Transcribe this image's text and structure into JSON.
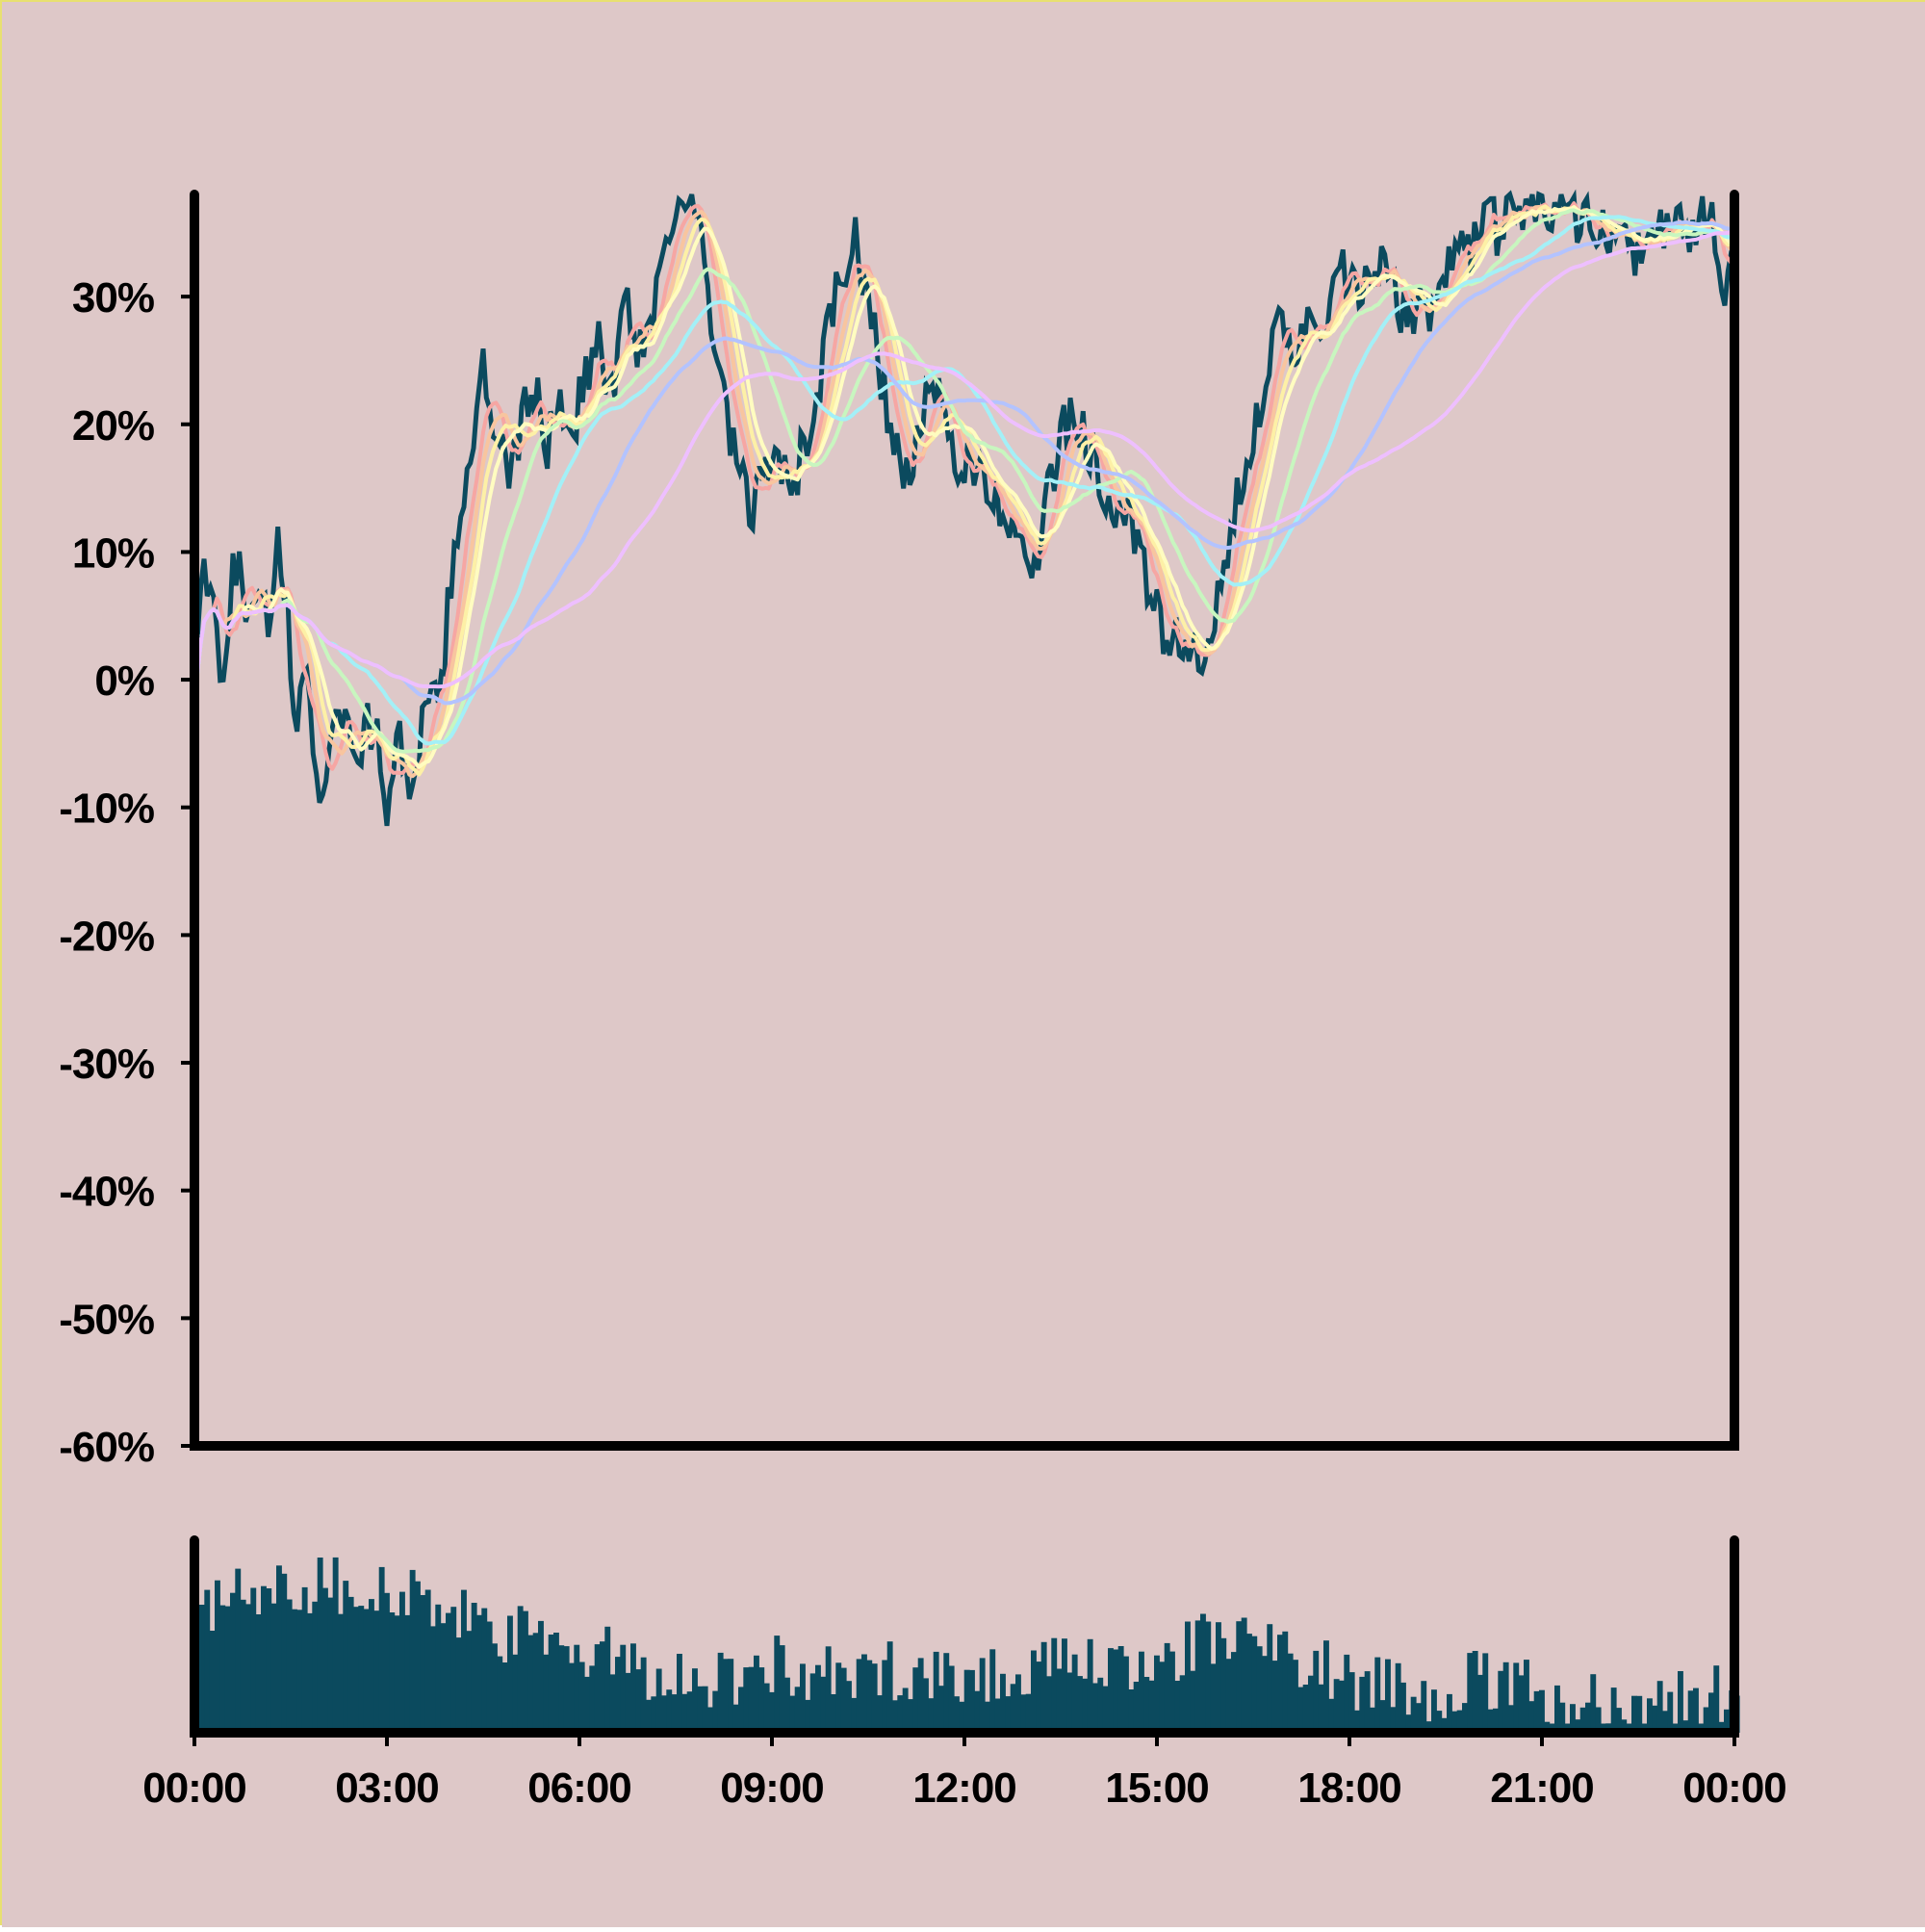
{
  "colors": {
    "background": "#dec8c8",
    "price": "#0b4a5e",
    "volume": "#0b4a5e",
    "axis": "#000000",
    "ma": [
      "#f6a6a3",
      "#f8c59f",
      "#fdf0a6",
      "#fffcc0",
      "#c8f6bf",
      "#a3f0f7",
      "#b3c3ff",
      "#eebfff"
    ]
  },
  "chart_data": [
    {
      "type": "line",
      "panel": "price",
      "ylim": [
        -0.6,
        0.38
      ],
      "y_ticks": [
        -0.6,
        -0.5,
        -0.4,
        -0.3,
        -0.2,
        -0.1,
        0,
        0.1,
        0.2,
        0.3
      ],
      "y_tick_labels": [
        "-60%",
        "-50%",
        "-40%",
        "-30%",
        "-20%",
        "-10%",
        "0%",
        "10%",
        "20%",
        "30%"
      ],
      "x_unit": "hours",
      "xlim": [
        0,
        24
      ],
      "price_series": [
        [
          0,
          0
        ],
        [
          0.15,
          0.08
        ],
        [
          0.3,
          0.05
        ],
        [
          0.45,
          0
        ],
        [
          0.6,
          0.1
        ],
        [
          0.8,
          0.06
        ],
        [
          1.0,
          0.08
        ],
        [
          1.2,
          0.04
        ],
        [
          1.3,
          0.1
        ],
        [
          1.45,
          0.05
        ],
        [
          1.6,
          -0.05
        ],
        [
          1.75,
          0.02
        ],
        [
          1.95,
          -0.1
        ],
        [
          2.1,
          -0.05
        ],
        [
          2.25,
          -0.02
        ],
        [
          2.4,
          -0.04
        ],
        [
          2.55,
          -0.06
        ],
        [
          2.7,
          -0.03
        ],
        [
          2.85,
          -0.05
        ],
        [
          3.0,
          -0.1
        ],
        [
          3.15,
          -0.04
        ],
        [
          3.3,
          -0.08
        ],
        [
          3.45,
          -0.06
        ],
        [
          3.6,
          -0.03
        ],
        [
          3.8,
          -0.02
        ],
        [
          3.95,
          0.05
        ],
        [
          4.1,
          0.12
        ],
        [
          4.3,
          0.18
        ],
        [
          4.5,
          0.24
        ],
        [
          4.7,
          0.18
        ],
        [
          4.9,
          0.16
        ],
        [
          5.1,
          0.2
        ],
        [
          5.3,
          0.23
        ],
        [
          5.5,
          0.18
        ],
        [
          5.7,
          0.22
        ],
        [
          5.9,
          0.2
        ],
        [
          6.1,
          0.24
        ],
        [
          6.3,
          0.26
        ],
        [
          6.5,
          0.22
        ],
        [
          6.7,
          0.3
        ],
        [
          6.9,
          0.26
        ],
        [
          7.1,
          0.28
        ],
        [
          7.3,
          0.33
        ],
        [
          7.5,
          0.38
        ],
        [
          7.7,
          0.38
        ],
        [
          7.9,
          0.34
        ],
        [
          8.1,
          0.26
        ],
        [
          8.3,
          0.2
        ],
        [
          8.5,
          0.16
        ],
        [
          8.7,
          0.12
        ],
        [
          8.9,
          0.18
        ],
        [
          9.1,
          0.16
        ],
        [
          9.3,
          0.15
        ],
        [
          9.5,
          0.18
        ],
        [
          9.7,
          0.22
        ],
        [
          9.9,
          0.28
        ],
        [
          10.1,
          0.32
        ],
        [
          10.3,
          0.34
        ],
        [
          10.5,
          0.3
        ],
        [
          10.7,
          0.24
        ],
        [
          10.9,
          0.18
        ],
        [
          11.1,
          0.16
        ],
        [
          11.3,
          0.19
        ],
        [
          11.5,
          0.23
        ],
        [
          11.7,
          0.2
        ],
        [
          11.9,
          0.16
        ],
        [
          12.1,
          0.18
        ],
        [
          12.3,
          0.15
        ],
        [
          12.5,
          0.14
        ],
        [
          12.7,
          0.13
        ],
        [
          12.9,
          0.12
        ],
        [
          13.1,
          0.08
        ],
        [
          13.3,
          0.14
        ],
        [
          13.5,
          0.19
        ],
        [
          13.7,
          0.21
        ],
        [
          13.9,
          0.19
        ],
        [
          14.1,
          0.16
        ],
        [
          14.3,
          0.14
        ],
        [
          14.5,
          0.13
        ],
        [
          14.7,
          0.1
        ],
        [
          14.9,
          0.07
        ],
        [
          15.1,
          0.03
        ],
        [
          15.3,
          0.04
        ],
        [
          15.5,
          0.02
        ],
        [
          15.7,
          0.01
        ],
        [
          15.9,
          0.04
        ],
        [
          16.1,
          0.1
        ],
        [
          16.3,
          0.15
        ],
        [
          16.5,
          0.2
        ],
        [
          16.7,
          0.24
        ],
        [
          16.9,
          0.27
        ],
        [
          17.1,
          0.26
        ],
        [
          17.3,
          0.28
        ],
        [
          17.5,
          0.26
        ],
        [
          17.7,
          0.29
        ],
        [
          17.9,
          0.32
        ],
        [
          18.1,
          0.3
        ],
        [
          18.3,
          0.31
        ],
        [
          18.5,
          0.32
        ],
        [
          18.7,
          0.3
        ],
        [
          18.9,
          0.28
        ],
        [
          19.1,
          0.3
        ],
        [
          19.3,
          0.29
        ],
        [
          19.5,
          0.32
        ],
        [
          19.7,
          0.33
        ],
        [
          19.9,
          0.34
        ],
        [
          20.1,
          0.37
        ],
        [
          20.3,
          0.35
        ],
        [
          20.5,
          0.38
        ],
        [
          20.7,
          0.36
        ],
        [
          20.9,
          0.38
        ],
        [
          21.1,
          0.37
        ],
        [
          21.3,
          0.38
        ],
        [
          21.5,
          0.36
        ],
        [
          21.7,
          0.37
        ],
        [
          21.9,
          0.35
        ],
        [
          22.1,
          0.34
        ],
        [
          22.3,
          0.36
        ],
        [
          22.5,
          0.33
        ],
        [
          22.7,
          0.34
        ],
        [
          22.9,
          0.35
        ],
        [
          23.1,
          0.37
        ],
        [
          23.3,
          0.34
        ],
        [
          23.5,
          0.36
        ],
        [
          23.7,
          0.35
        ],
        [
          23.85,
          0.29
        ],
        [
          24,
          0.33
        ]
      ],
      "moving_average_windows": [
        2,
        3,
        4,
        5,
        9,
        14,
        21,
        31
      ]
    },
    {
      "type": "bar",
      "panel": "volume",
      "x_tick_labels": [
        "00:00",
        "03:00",
        "06:00",
        "09:00",
        "12:00",
        "15:00",
        "18:00",
        "21:00",
        "00:00"
      ],
      "x_ticks": [
        0,
        3,
        6,
        9,
        12,
        15,
        18,
        21,
        24
      ],
      "volume_profile": [
        [
          0,
          0.7
        ],
        [
          1,
          0.8
        ],
        [
          2,
          0.82
        ],
        [
          3,
          0.78
        ],
        [
          4,
          0.62
        ],
        [
          5,
          0.52
        ],
        [
          6,
          0.45
        ],
        [
          7,
          0.35
        ],
        [
          8,
          0.28
        ],
        [
          9,
          0.38
        ],
        [
          10,
          0.28
        ],
        [
          11,
          0.36
        ],
        [
          12,
          0.3
        ],
        [
          13,
          0.36
        ],
        [
          14,
          0.34
        ],
        [
          15,
          0.42
        ],
        [
          16,
          0.52
        ],
        [
          17,
          0.44
        ],
        [
          18,
          0.3
        ],
        [
          19,
          0.22
        ],
        [
          20,
          0.28
        ],
        [
          21,
          0.2
        ],
        [
          22,
          0.16
        ],
        [
          23,
          0.18
        ],
        [
          24,
          0.22
        ]
      ]
    }
  ]
}
